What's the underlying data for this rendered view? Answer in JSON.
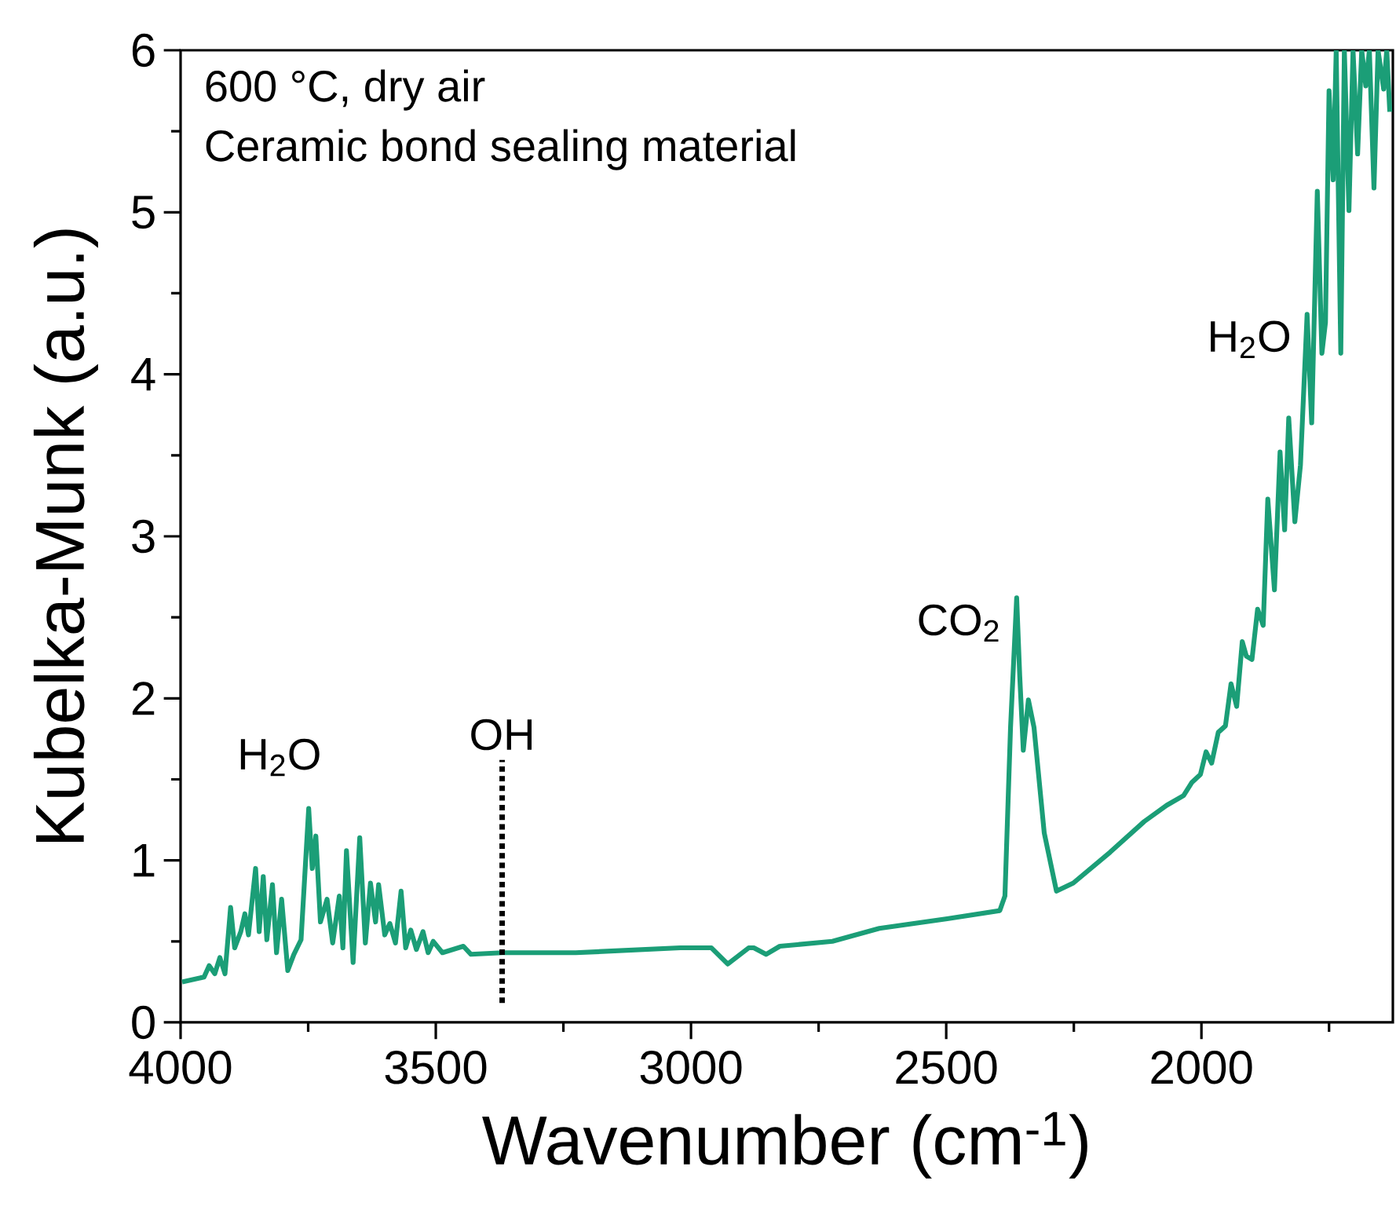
{
  "chart_data": {
    "type": "line",
    "xlabel": "Wavenumber (cm$^{-1}$)",
    "ylabel": "Kubelka-Munk (a.u.)",
    "color": "#1b9e77",
    "x": [
      3997,
      3954,
      3944,
      3933,
      3923,
      3913,
      3902,
      3894,
      3882,
      3874,
      3867,
      3853,
      3846,
      3838,
      3831,
      3820,
      3812,
      3802,
      3790,
      3778,
      3764,
      3749,
      3742,
      3735,
      3726,
      3713,
      3702,
      3689,
      3682,
      3675,
      3662,
      3649,
      3638,
      3628,
      3618,
      3612,
      3600,
      3590,
      3579,
      3568,
      3559,
      3549,
      3538,
      3525,
      3515,
      3505,
      3487,
      3446,
      3431,
      3369,
      3226,
      3021,
      2960,
      2928,
      2887,
      2877,
      2853,
      2826,
      2723,
      2631,
      2498,
      2395,
      2385,
      2374,
      2362,
      2356,
      2349,
      2339,
      2328,
      2308,
      2284,
      2251,
      2179,
      2112,
      2068,
      2035,
      2019,
      2002,
      1991,
      1980,
      1967,
      1953,
      1942,
      1931,
      1920,
      1912,
      1901,
      1890,
      1879,
      1870,
      1857,
      1846,
      1837,
      1829,
      1817,
      1806,
      1793,
      1784,
      1773,
      1764,
      1757,
      1750,
      1742,
      1736,
      1727,
      1720,
      1711,
      1703,
      1694,
      1686,
      1678,
      1671,
      1662,
      1654,
      1643,
      1637,
      1631
    ],
    "values": [
      0.25,
      0.28,
      0.35,
      0.3,
      0.4,
      0.3,
      0.71,
      0.46,
      0.56,
      0.67,
      0.54,
      0.95,
      0.56,
      0.9,
      0.51,
      0.85,
      0.43,
      0.76,
      0.32,
      0.42,
      0.51,
      1.32,
      0.95,
      1.15,
      0.62,
      0.76,
      0.49,
      0.78,
      0.46,
      1.06,
      0.37,
      1.14,
      0.49,
      0.86,
      0.62,
      0.85,
      0.54,
      0.61,
      0.49,
      0.81,
      0.46,
      0.57,
      0.45,
      0.56,
      0.43,
      0.5,
      0.43,
      0.47,
      0.42,
      0.43,
      0.43,
      0.46,
      0.46,
      0.36,
      0.46,
      0.46,
      0.42,
      0.47,
      0.5,
      0.58,
      0.64,
      0.69,
      0.78,
      1.82,
      2.62,
      2.14,
      1.68,
      1.99,
      1.82,
      1.17,
      0.81,
      0.86,
      1.05,
      1.24,
      1.34,
      1.4,
      1.48,
      1.53,
      1.67,
      1.6,
      1.79,
      1.83,
      2.09,
      1.95,
      2.35,
      2.26,
      2.24,
      2.55,
      2.45,
      3.23,
      2.67,
      3.52,
      3.04,
      3.73,
      3.09,
      3.44,
      4.37,
      3.7,
      5.13,
      4.13,
      4.32,
      5.75,
      5.2,
      6.0,
      4.13,
      6.0,
      5.01,
      6.0,
      5.36,
      6.0,
      5.78,
      6.0,
      5.15,
      6.0,
      5.76,
      6.0,
      5.62
    ],
    "xlim": [
      4000,
      1625
    ],
    "ylim": [
      0,
      6
    ],
    "xticks": [
      4000,
      {
        "value": 3750,
        "label": null
      },
      3500,
      {
        "value": 3250,
        "label": null
      },
      3000,
      {
        "value": 2750,
        "label": null
      },
      2500,
      {
        "value": 2250,
        "label": null
      },
      2000,
      {
        "value": 1750,
        "label": null
      }
    ],
    "yticks": [
      0,
      {
        "value": 0.5,
        "label": null
      },
      1,
      {
        "value": 1.5,
        "label": null
      },
      2,
      {
        "value": 2.5,
        "label": null
      },
      3,
      {
        "value": 3.5,
        "label": null
      },
      4,
      {
        "value": 4.5,
        "label": null
      },
      5,
      {
        "value": 5.5,
        "label": null
      },
      6
    ],
    "ref_lines": [
      {
        "axis": "x",
        "value": 3370,
        "label": "OH",
        "color": "#000000",
        "line_style": "dotted"
      }
    ],
    "annotations": [
      "600 °C, dry air",
      "Ceramic bond sealing material",
      {
        "text": "H$_{2}$O",
        "x": 3749,
        "y": 1.32
      },
      {
        "text": "CO$_{2}$",
        "x": 2362,
        "y": 2.62
      },
      {
        "text": "H$_{2}$O",
        "x": 1793,
        "y": 4.37
      }
    ]
  }
}
